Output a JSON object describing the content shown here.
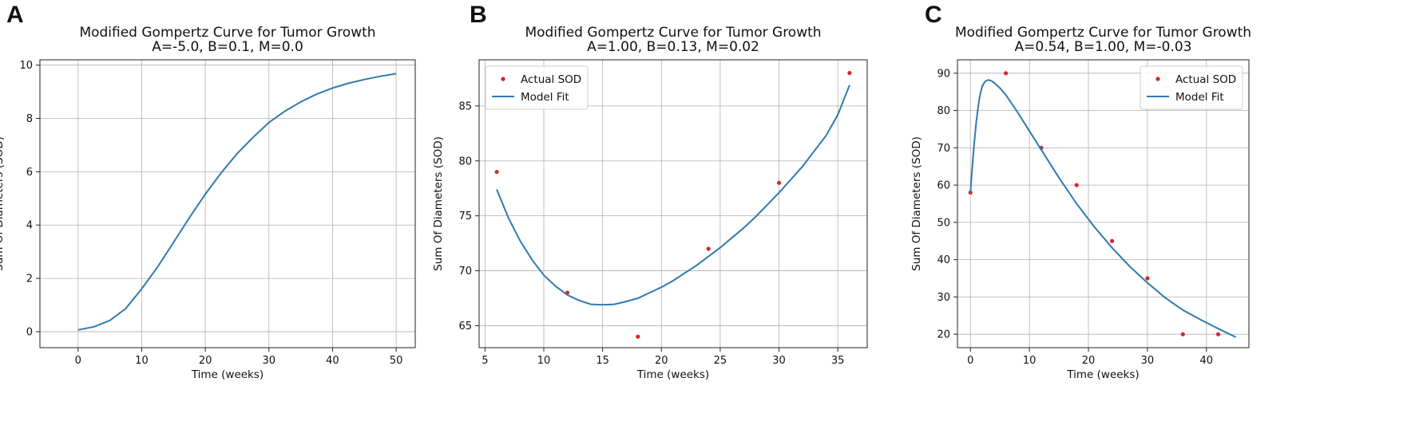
{
  "panels": [
    {
      "letter": "A",
      "chart_data": {
        "type": "line",
        "title": "Modified Gompertz Curve for Tumor Growth",
        "subtitle": "A=-5.0, B=0.1, M=0.0",
        "xlabel": "Time (weeks)",
        "ylabel": "Sum Of Diameters (SOD)",
        "xlim": [
          -6,
          53
        ],
        "ylim": [
          -0.6,
          10.2
        ],
        "xticks": [
          0,
          10,
          20,
          30,
          40,
          50
        ],
        "yticks": [
          0,
          2,
          4,
          6,
          8,
          10
        ],
        "grid": true,
        "legend": null,
        "series": [
          {
            "name": "Model Fit",
            "kind": "line",
            "color": "#2f7ab0",
            "x": [
              0,
              2.5,
              5,
              7.5,
              10,
              12.5,
              15,
              17.5,
              20,
              22.5,
              25,
              27.5,
              30,
              32.5,
              35,
              37.5,
              40,
              42.5,
              45,
              47.5,
              50
            ],
            "y": [
              0.067,
              0.183,
              0.42,
              0.87,
              1.61,
              2.43,
              3.35,
              4.28,
              5.16,
              5.96,
              6.68,
              7.29,
              7.85,
              8.27,
              8.62,
              8.91,
              9.14,
              9.32,
              9.46,
              9.58,
              9.68
            ]
          }
        ]
      }
    },
    {
      "letter": "B",
      "chart_data": {
        "type": "scatter",
        "title": "Modified Gompertz Curve for Tumor Growth",
        "subtitle": "A=1.00, B=0.13, M=0.02",
        "xlabel": "Time (weeks)",
        "ylabel": "Sum Of Diameters (SOD)",
        "xlim": [
          4.5,
          37.5
        ],
        "ylim": [
          63.0,
          89.2
        ],
        "xticks": [
          5,
          10,
          15,
          20,
          25,
          30,
          35
        ],
        "yticks": [
          65,
          70,
          75,
          80,
          85
        ],
        "grid": true,
        "legend": "upper left",
        "series": [
          {
            "name": "Actual SOD",
            "kind": "scatter",
            "color": "#d62728",
            "x": [
              6,
              12,
              18,
              24,
              30,
              36
            ],
            "y": [
              79,
              68,
              64,
              72,
              78,
              88
            ]
          },
          {
            "name": "Model Fit",
            "kind": "line",
            "color": "#2f7ab0",
            "x": [
              6,
              7,
              8,
              9,
              10,
              11,
              12,
              13,
              14,
              15,
              16,
              17,
              18,
              19,
              20,
              21,
              22,
              23,
              24,
              25,
              26,
              27,
              28,
              29,
              30,
              31,
              32,
              33,
              34,
              35,
              36
            ],
            "y": [
              77.4,
              74.8,
              72.7,
              71.0,
              69.6,
              68.6,
              67.8,
              67.3,
              66.95,
              66.9,
              66.95,
              67.2,
              67.5,
              68.0,
              68.5,
              69.1,
              69.8,
              70.5,
              71.3,
              72.1,
              73.0,
              73.9,
              74.9,
              76.0,
              77.1,
              78.3,
              79.5,
              80.9,
              82.3,
              84.2,
              86.9
            ]
          }
        ]
      }
    },
    {
      "letter": "C",
      "chart_data": {
        "type": "scatter",
        "title": "Modified Gompertz Curve for Tumor Growth",
        "subtitle": "A=0.54, B=1.00, M=-0.03",
        "xlabel": "Time (weeks)",
        "ylabel": "Sum Of Diameters (SOD)",
        "xlim": [
          -2.2,
          47.2
        ],
        "ylim": [
          16.4,
          93.6
        ],
        "xticks": [
          0,
          10,
          20,
          30,
          40
        ],
        "yticks": [
          20,
          30,
          40,
          50,
          60,
          70,
          80,
          90
        ],
        "grid": true,
        "legend": "upper right",
        "series": [
          {
            "name": "Actual SOD",
            "kind": "scatter",
            "color": "#d62728",
            "x": [
              0,
              6,
              12,
              18,
              24,
              30,
              36,
              42
            ],
            "y": [
              58,
              90,
              70,
              60,
              45,
              35,
              20,
              20
            ]
          },
          {
            "name": "Model Fit",
            "kind": "line",
            "color": "#2f7ab0",
            "x": [
              0,
              0.25,
              0.5,
              0.75,
              1,
              1.25,
              1.5,
              1.75,
              2,
              2.5,
              3,
              3.5,
              4,
              5,
              6,
              8,
              10,
              12,
              15,
              18,
              21,
              24,
              27,
              30,
              33,
              36,
              39,
              42,
              45
            ],
            "y": [
              58,
              63.5,
              68.5,
              73,
              77,
              80.2,
              83,
              85,
              86.5,
              87.8,
              88.2,
              88,
              87.5,
              86,
              84.2,
              79.5,
              74.5,
              69.5,
              62,
              55,
              48.8,
              43.2,
              38.2,
              33.8,
              29.8,
              26.5,
              23.9,
              21.5,
              19.2
            ]
          }
        ]
      }
    }
  ]
}
